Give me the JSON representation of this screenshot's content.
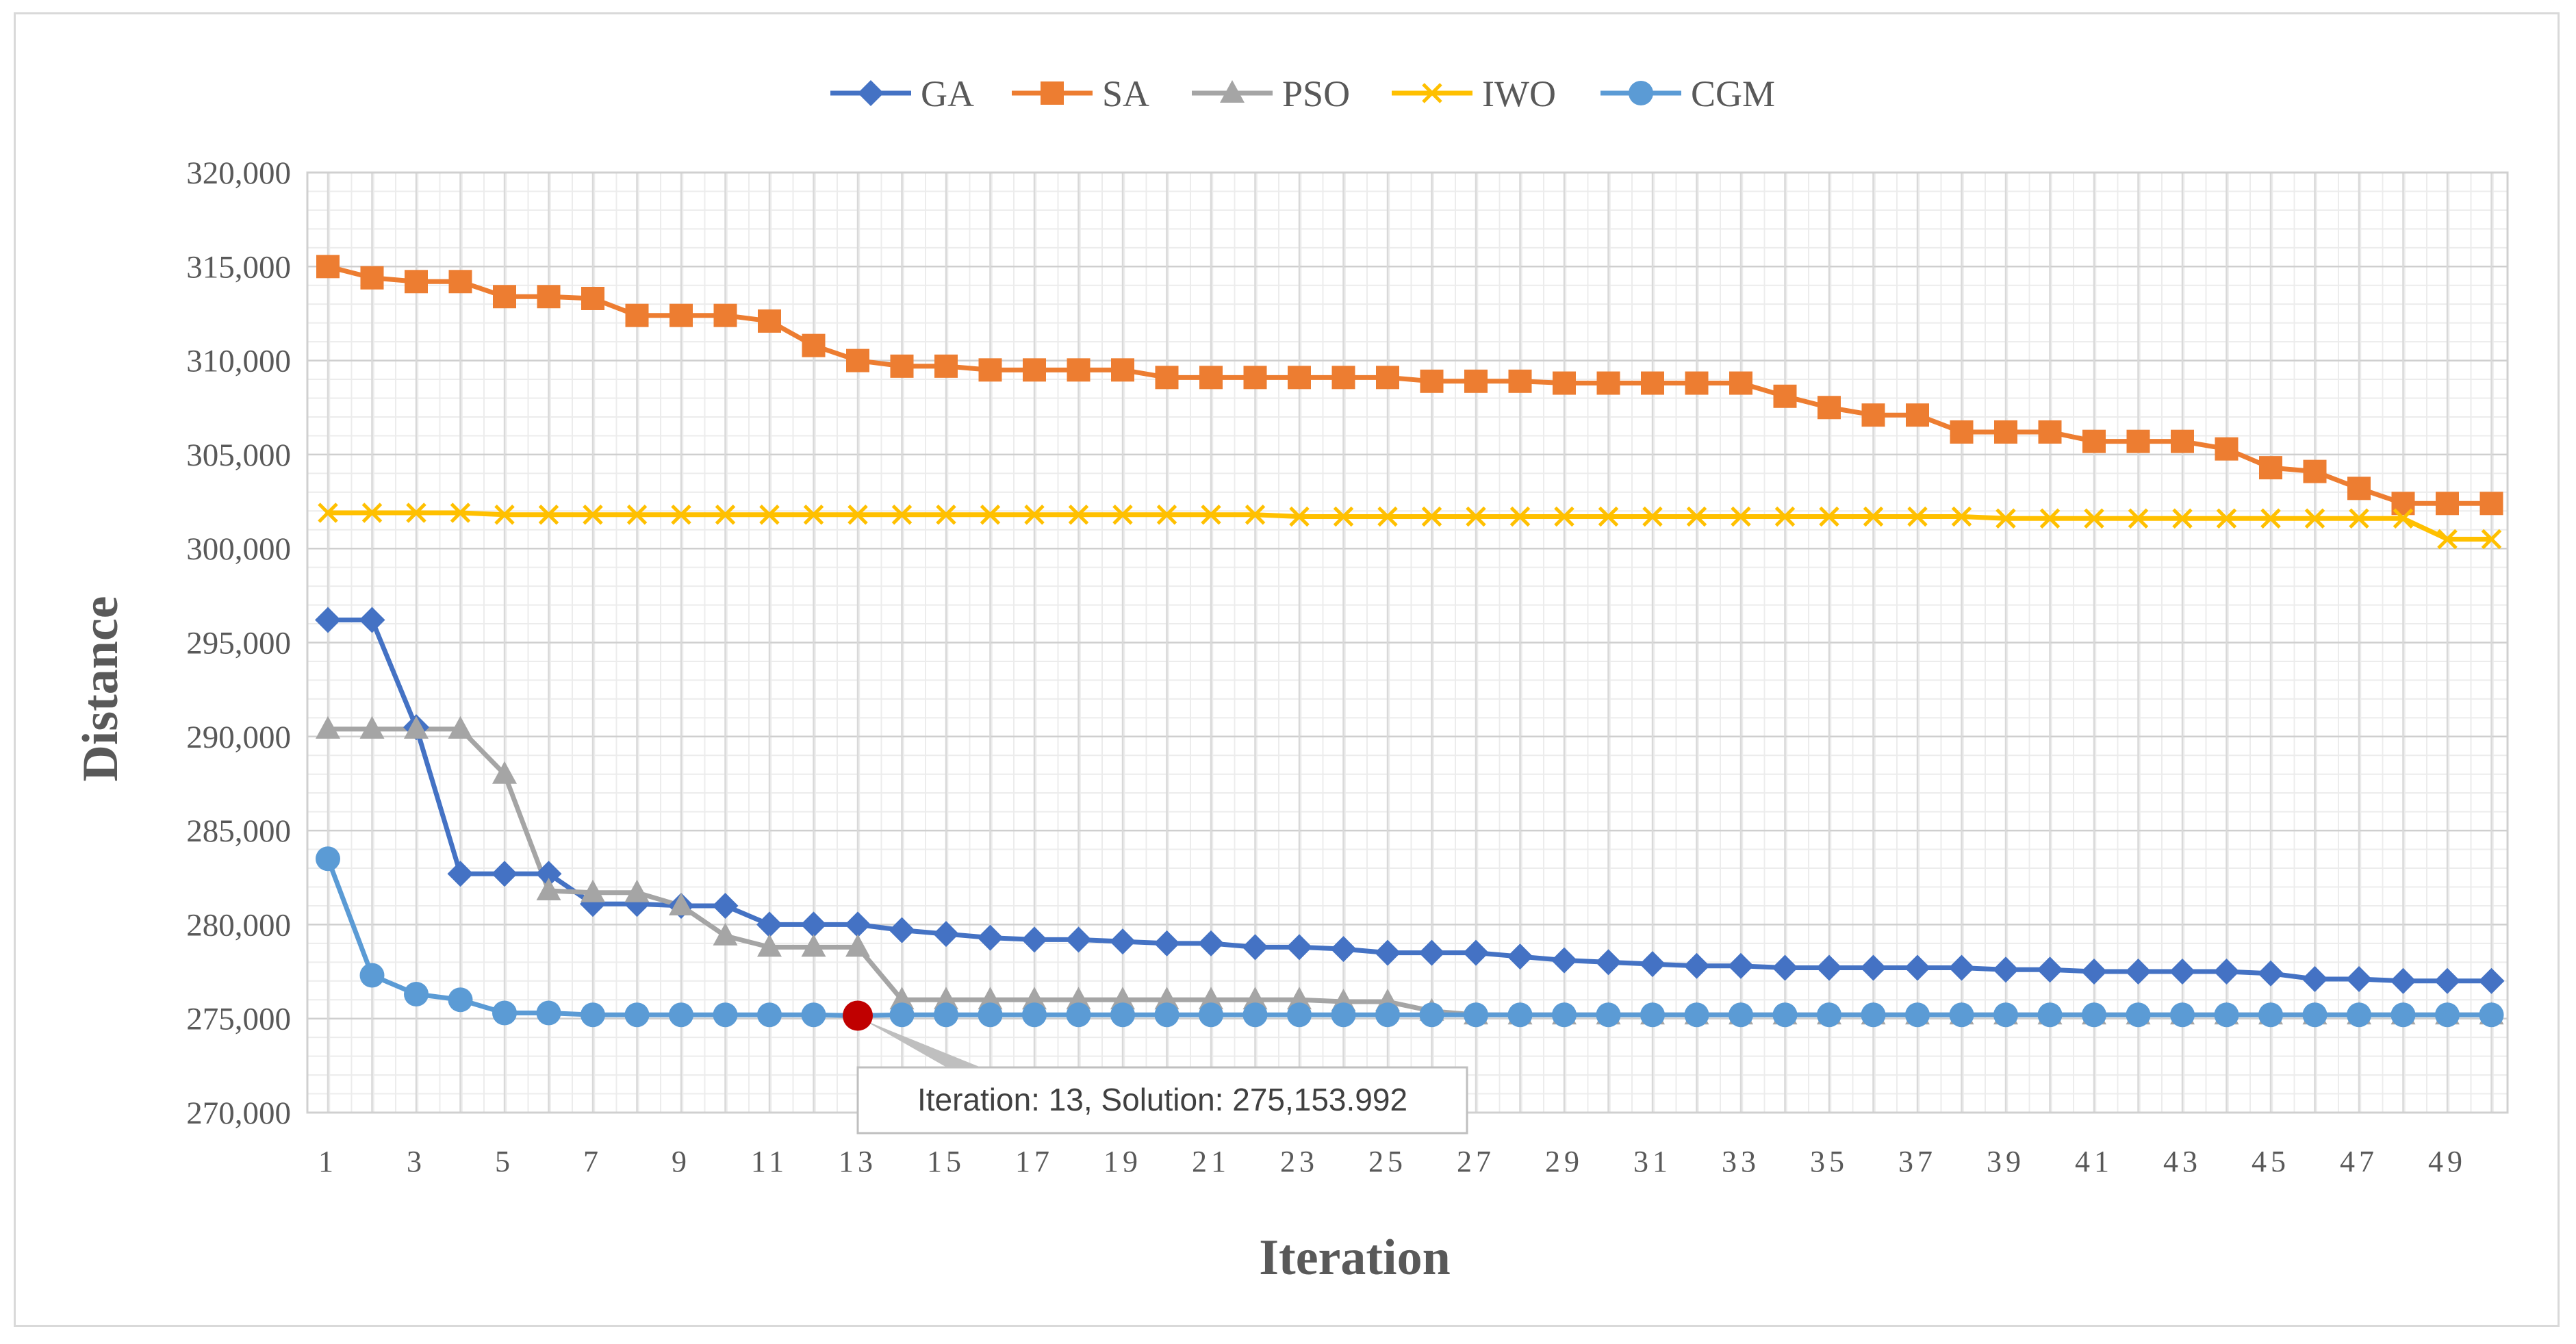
{
  "chart_data": {
    "type": "line",
    "title": "",
    "xlabel": "Iteration",
    "ylabel": "Distance",
    "xlim": [
      1,
      50
    ],
    "ylim": [
      270000,
      320000
    ],
    "y_ticks": [
      "270,000",
      "275,000",
      "280,000",
      "285,000",
      "290,000",
      "295,000",
      "300,000",
      "305,000",
      "310,000",
      "315,000",
      "320,000"
    ],
    "x_ticks": [
      "1",
      "3",
      "5",
      "7",
      "9",
      "11",
      "13",
      "15",
      "17",
      "19",
      "21",
      "23",
      "25",
      "27",
      "29",
      "31",
      "33",
      "35",
      "37",
      "39",
      "41",
      "43",
      "45",
      "47",
      "49"
    ],
    "legend": "top",
    "grid": true,
    "series": [
      {
        "name": "GA",
        "color": "#4472c4",
        "marker": "diamond",
        "values": [
          296200,
          296200,
          290500,
          282700,
          282700,
          282700,
          281100,
          281100,
          281000,
          281000,
          280000,
          280000,
          280000,
          279700,
          279500,
          279300,
          279200,
          279200,
          279100,
          279000,
          279000,
          278800,
          278800,
          278700,
          278500,
          278500,
          278500,
          278300,
          278100,
          278000,
          277900,
          277800,
          277800,
          277700,
          277700,
          277700,
          277700,
          277700,
          277600,
          277600,
          277500,
          277500,
          277500,
          277500,
          277400,
          277100,
          277100,
          277000,
          277000,
          277000
        ]
      },
      {
        "name": "SA",
        "color": "#ed7d31",
        "marker": "square",
        "values": [
          315000,
          314400,
          314200,
          314200,
          313400,
          313400,
          313300,
          312400,
          312400,
          312400,
          312100,
          310800,
          310000,
          309700,
          309700,
          309500,
          309500,
          309500,
          309500,
          309100,
          309100,
          309100,
          309100,
          309100,
          309100,
          308900,
          308900,
          308900,
          308800,
          308800,
          308800,
          308800,
          308800,
          308100,
          307500,
          307100,
          307100,
          306200,
          306200,
          306200,
          305700,
          305700,
          305700,
          305300,
          304300,
          304100,
          303200,
          302400,
          302400,
          302400
        ]
      },
      {
        "name": "PSO",
        "color": "#a5a5a5",
        "marker": "triangle",
        "values": [
          290400,
          290400,
          290400,
          290400,
          288000,
          281800,
          281700,
          281700,
          281000,
          279400,
          278800,
          278800,
          278800,
          276000,
          276000,
          276000,
          276000,
          276000,
          276000,
          276000,
          276000,
          276000,
          276000,
          275900,
          275900,
          275400,
          275200,
          275200,
          275200,
          275200,
          275200,
          275200,
          275200,
          275200,
          275200,
          275200,
          275200,
          275200,
          275200,
          275200,
          275200,
          275200,
          275200,
          275200,
          275200,
          275200,
          275200,
          275200,
          275200,
          275200
        ]
      },
      {
        "name": "IWO",
        "color": "#ffc000",
        "marker": "x",
        "values": [
          301900,
          301900,
          301900,
          301900,
          301800,
          301800,
          301800,
          301800,
          301800,
          301800,
          301800,
          301800,
          301800,
          301800,
          301800,
          301800,
          301800,
          301800,
          301800,
          301800,
          301800,
          301800,
          301700,
          301700,
          301700,
          301700,
          301700,
          301700,
          301700,
          301700,
          301700,
          301700,
          301700,
          301700,
          301700,
          301700,
          301700,
          301700,
          301600,
          301600,
          301600,
          301600,
          301600,
          301600,
          301600,
          301600,
          301600,
          301600,
          300500,
          300500
        ]
      },
      {
        "name": "CGM",
        "color": "#5b9bd5",
        "marker": "circle",
        "values": [
          283500,
          277300,
          276300,
          276000,
          275300,
          275300,
          275200,
          275200,
          275200,
          275200,
          275200,
          275200,
          275154,
          275200,
          275200,
          275200,
          275200,
          275200,
          275200,
          275200,
          275200,
          275200,
          275200,
          275200,
          275200,
          275200,
          275200,
          275200,
          275200,
          275200,
          275200,
          275200,
          275200,
          275200,
          275200,
          275200,
          275200,
          275200,
          275200,
          275200,
          275200,
          275200,
          275200,
          275200,
          275200,
          275200,
          275200,
          275200,
          275200,
          275200
        ]
      }
    ],
    "annotation": {
      "text": "Iteration: 13, Solution: 275,153.992",
      "series": "CGM",
      "x": 13,
      "y": 275153.992,
      "highlight_color": "#c00000"
    }
  }
}
